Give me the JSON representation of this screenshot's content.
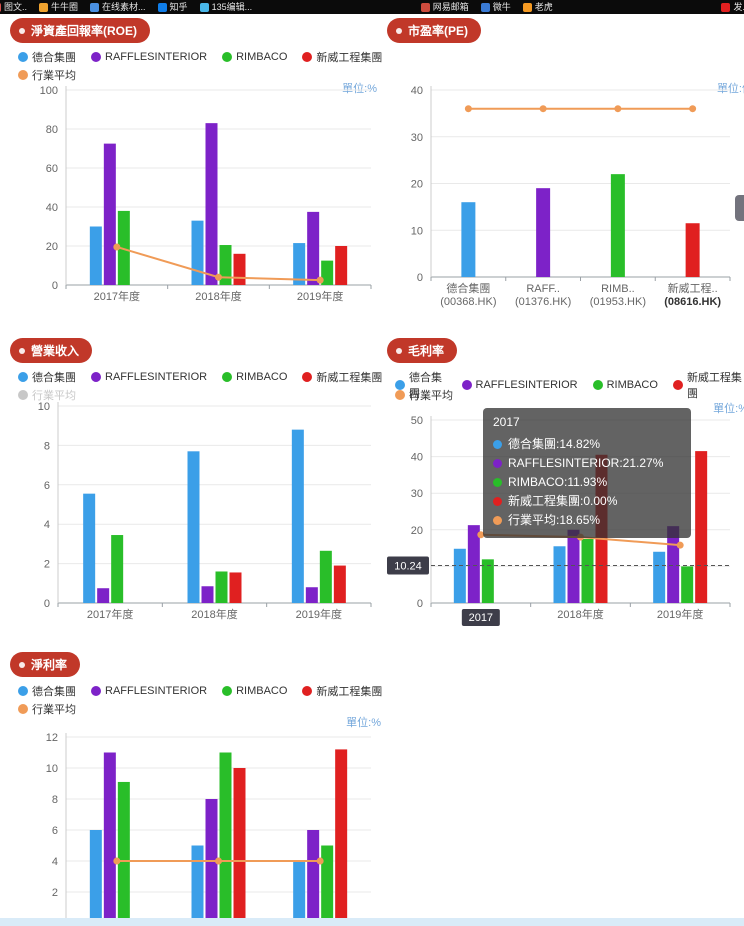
{
  "top_bar": {
    "items": [
      {
        "label": "图文..",
        "color": "#d9534f"
      },
      {
        "label": "牛牛圈",
        "color": "#f0a32f"
      },
      {
        "label": "在线素材...",
        "color": "#4a90e2"
      },
      {
        "label": "知乎",
        "color": "#0f7de8"
      },
      {
        "label": "135编辑...",
        "color": "#49b6e8"
      },
      {
        "label": "网易邮箱",
        "color": "#cc4b3d"
      },
      {
        "label": "微牛",
        "color": "#3a7bd5"
      },
      {
        "label": "老虎",
        "color": "#f59a23"
      },
      {
        "label": "发...",
        "color": "#e02020"
      }
    ]
  },
  "colors": {
    "blue": "#3B9FE8",
    "purple": "#7D22C8",
    "green": "#29BE29",
    "red": "#E02020",
    "orange": "#F09B57",
    "badge_red": "#C13829",
    "unit_blue": "#74A7DB"
  },
  "chart_data": [
    {
      "id": "roe",
      "type": "bar",
      "title": "淨資產回報率(ROE)",
      "unit": "單位:%",
      "categories": [
        "2017年度",
        "2018年度",
        "2019年度"
      ],
      "ylim": [
        0,
        100
      ],
      "yticks": [
        0,
        20,
        40,
        60,
        80,
        100
      ],
      "legend_row1": [
        {
          "name": "德合集團",
          "color": "#3B9FE8"
        },
        {
          "name": "RAFFLESINTERIOR",
          "color": "#7D22C8"
        },
        {
          "name": "RIMBACO",
          "color": "#29BE29"
        },
        {
          "name": "新威工程集團",
          "color": "#E02020"
        }
      ],
      "legend_row2": [
        {
          "name": "行業平均",
          "color": "#F09B57"
        }
      ],
      "series": [
        {
          "name": "德合集團",
          "type": "bar",
          "color": "#3B9FE8",
          "values": [
            30,
            33,
            21.5
          ]
        },
        {
          "name": "RAFFLESINTERIOR",
          "type": "bar",
          "color": "#7D22C8",
          "values": [
            72.5,
            83,
            37.5
          ]
        },
        {
          "name": "RIMBACO",
          "type": "bar",
          "color": "#29BE29",
          "values": [
            38,
            20.5,
            12.5
          ]
        },
        {
          "name": "新威工程集團",
          "type": "bar",
          "color": "#E02020",
          "values": [
            0,
            16,
            20
          ]
        },
        {
          "name": "行業平均",
          "type": "line",
          "color": "#F09B57",
          "values": [
            19.5,
            4,
            2.5
          ]
        }
      ]
    },
    {
      "id": "pe",
      "type": "bar",
      "title": "市盈率(PE)",
      "unit": "單位:倍",
      "categories": [
        [
          "德合集團",
          "(00368.HK)"
        ],
        [
          "RAFF..",
          "(01376.HK)"
        ],
        [
          "RIMB..",
          "(01953.HK)"
        ],
        [
          "新威工程..",
          "(08616.HK)"
        ]
      ],
      "emph_category": 3,
      "ylim": [
        0,
        40
      ],
      "yticks": [
        0,
        10,
        20,
        30,
        40
      ],
      "series": [
        {
          "name": "市盈率",
          "type": "bar",
          "colors": [
            "#3B9FE8",
            "#7D22C8",
            "#29BE29",
            "#E02020"
          ],
          "values": [
            16,
            19,
            22,
            11.5
          ]
        },
        {
          "name": "行業平均",
          "type": "line",
          "color": "#F09B57",
          "values": [
            36,
            36,
            36,
            36
          ]
        }
      ]
    },
    {
      "id": "rev",
      "type": "bar",
      "title": "營業收入",
      "unit": "",
      "categories": [
        "2017年度",
        "2018年度",
        "2019年度"
      ],
      "ylim": [
        0,
        10
      ],
      "yticks": [
        0,
        2,
        4,
        6,
        8,
        10
      ],
      "legend_row1": [
        {
          "name": "德合集團",
          "color": "#3B9FE8"
        },
        {
          "name": "RAFFLESINTERIOR",
          "color": "#7D22C8"
        },
        {
          "name": "RIMBACO",
          "color": "#29BE29"
        },
        {
          "name": "新威工程集團",
          "color": "#E02020"
        }
      ],
      "legend_row2": [
        {
          "name": "行業平均",
          "color": "#F09B57",
          "disabled": true
        }
      ],
      "series": [
        {
          "name": "德合集團",
          "type": "bar",
          "color": "#3B9FE8",
          "values": [
            5.55,
            7.7,
            8.8
          ]
        },
        {
          "name": "RAFFLESINTERIOR",
          "type": "bar",
          "color": "#7D22C8",
          "values": [
            0.75,
            0.85,
            0.8
          ]
        },
        {
          "name": "RIMBACO",
          "type": "bar",
          "color": "#29BE29",
          "values": [
            3.45,
            1.6,
            2.65
          ]
        },
        {
          "name": "新威工程集團",
          "type": "bar",
          "color": "#E02020",
          "values": [
            0,
            1.55,
            1.9
          ]
        }
      ]
    },
    {
      "id": "gross",
      "type": "bar",
      "title": "毛利率",
      "unit": "單位:%",
      "categories": [
        "2017年度",
        "2018年度",
        "2019年度"
      ],
      "ylim": [
        0,
        50
      ],
      "yticks": [
        0,
        10,
        20,
        30,
        40,
        50
      ],
      "legend_row1": [
        {
          "name": "德合集團",
          "color": "#3B9FE8"
        },
        {
          "name": "RAFFLESINTERIOR",
          "color": "#7D22C8"
        },
        {
          "name": "RIMBACO",
          "color": "#29BE29"
        },
        {
          "name": "新威工程集團",
          "color": "#E02020"
        }
      ],
      "legend_row2": [
        {
          "name": "行業平均",
          "color": "#F09B57"
        }
      ],
      "pointer": {
        "value": 10.24,
        "label": "10.24"
      },
      "highlight": {
        "category": 0,
        "label": "2017"
      },
      "tooltip": {
        "title": "2017",
        "rows": [
          {
            "color": "#3B9FE8",
            "text": "德合集團:14.82%"
          },
          {
            "color": "#7D22C8",
            "text": "RAFFLESINTERIOR:21.27%"
          },
          {
            "color": "#29BE29",
            "text": "RIMBACO:11.93%"
          },
          {
            "color": "#E02020",
            "text": "新威工程集團:0.00%"
          },
          {
            "color": "#F09B57",
            "text": "行業平均:18.65%"
          }
        ]
      },
      "series": [
        {
          "name": "德合集團",
          "type": "bar",
          "color": "#3B9FE8",
          "values": [
            14.82,
            15.5,
            14
          ]
        },
        {
          "name": "RAFFLESINTERIOR",
          "type": "bar",
          "color": "#7D22C8",
          "values": [
            21.27,
            20,
            21
          ]
        },
        {
          "name": "RIMBACO",
          "type": "bar",
          "color": "#29BE29",
          "values": [
            11.93,
            17.5,
            10
          ]
        },
        {
          "name": "新威工程集團",
          "type": "bar",
          "color": "#E02020",
          "values": [
            0,
            40.5,
            41.5
          ]
        },
        {
          "name": "行業平均",
          "type": "line",
          "color": "#F09B57",
          "values": [
            18.65,
            18,
            15.8
          ]
        }
      ]
    },
    {
      "id": "net",
      "type": "bar",
      "title": "淨利率",
      "unit": "單位:%",
      "categories": [
        "2017年度",
        "2018年度",
        "2019年度"
      ],
      "ylim": [
        0,
        12
      ],
      "yticks": [
        2,
        4,
        6,
        8,
        10,
        12
      ],
      "legend_row1": [
        {
          "name": "德合集團",
          "color": "#3B9FE8"
        },
        {
          "name": "RAFFLESINTERIOR",
          "color": "#7D22C8"
        },
        {
          "name": "RIMBACO",
          "color": "#29BE29"
        },
        {
          "name": "新威工程集團",
          "color": "#E02020"
        }
      ],
      "legend_row2": [
        {
          "name": "行業平均",
          "color": "#F09B57"
        }
      ],
      "series": [
        {
          "name": "德合集團",
          "type": "bar",
          "color": "#3B9FE8",
          "values": [
            6,
            5,
            4
          ]
        },
        {
          "name": "RAFFLESINTERIOR",
          "type": "bar",
          "color": "#7D22C8",
          "values": [
            11,
            8,
            6
          ]
        },
        {
          "name": "RIMBACO",
          "type": "bar",
          "color": "#29BE29",
          "values": [
            9.1,
            11,
            5
          ]
        },
        {
          "name": "新威工程集團",
          "type": "bar",
          "color": "#E02020",
          "values": [
            0,
            10,
            11.2
          ]
        },
        {
          "name": "行業平均",
          "type": "line",
          "color": "#F09B57",
          "values": [
            4,
            4,
            4
          ]
        }
      ]
    }
  ]
}
